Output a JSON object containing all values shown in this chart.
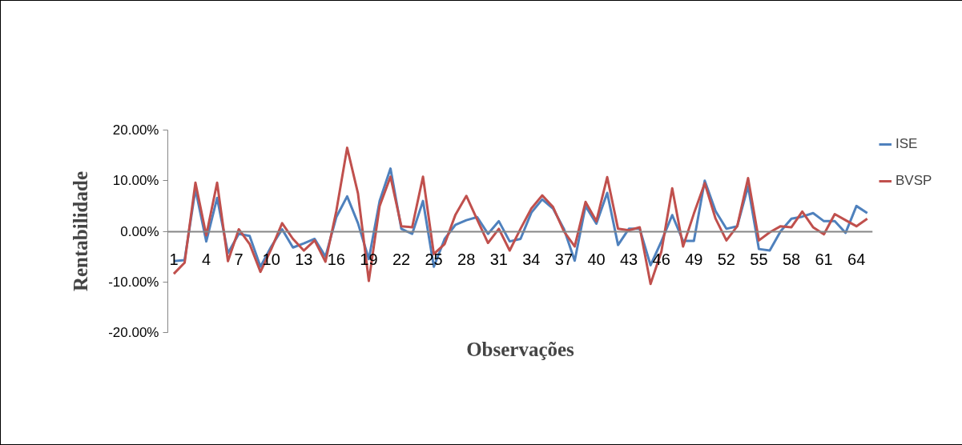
{
  "chart_data": {
    "type": "line",
    "xlabel": "Observações",
    "ylabel": "Rentabilidade",
    "categories": [
      "1",
      null,
      null,
      "4",
      null,
      null,
      "7",
      null,
      null,
      "10",
      null,
      null,
      "13",
      null,
      null,
      "16",
      null,
      null,
      "19",
      null,
      null,
      "22",
      null,
      null,
      "25",
      null,
      null,
      "28",
      null,
      null,
      "31",
      null,
      null,
      "34",
      null,
      null,
      "37",
      null,
      null,
      "40",
      null,
      null,
      "43",
      null,
      null,
      "46",
      null,
      null,
      "49",
      null,
      null,
      "52",
      null,
      null,
      "55",
      null,
      null,
      "58",
      null,
      null,
      "61",
      null,
      null,
      "64",
      null
    ],
    "series": [
      {
        "name": "ISE",
        "color": "#4f81bd",
        "values": [
          -5.9,
          -5.7,
          8.3,
          -2.0,
          6.6,
          -4.3,
          -0.5,
          -0.9,
          -7.0,
          -3.0,
          0.4,
          -3.2,
          -2.4,
          -1.5,
          -5.0,
          2.8,
          6.9,
          1.6,
          -5.5,
          6.0,
          12.4,
          0.5,
          -0.5,
          6.0,
          -7.0,
          -1.5,
          1.3,
          2.2,
          2.8,
          -0.5,
          2.0,
          -2.0,
          -1.5,
          3.7,
          6.3,
          4.5,
          0.5,
          -5.8,
          5.0,
          1.5,
          7.6,
          -2.7,
          0.5,
          0.5,
          -6.7,
          -2.0,
          3.2,
          -1.9,
          -1.9,
          10.0,
          4.0,
          0.5,
          1.0,
          8.9,
          -3.5,
          -3.8,
          0.0,
          2.5,
          2.9,
          3.6,
          2.0,
          2.0,
          -0.3,
          5.0,
          3.6
        ]
      },
      {
        "name": "BVSP",
        "color": "#c0504d",
        "values": [
          -8.4,
          -6.2,
          9.6,
          -0.8,
          9.6,
          -5.9,
          0.4,
          -2.5,
          -8.0,
          -3.5,
          1.6,
          -1.5,
          -3.8,
          -1.8,
          -6.0,
          4.0,
          16.5,
          7.5,
          -9.8,
          5.0,
          10.8,
          1.0,
          0.8,
          10.8,
          -4.5,
          -2.5,
          3.3,
          7.0,
          2.3,
          -2.3,
          0.5,
          -3.8,
          0.5,
          4.5,
          7.1,
          4.8,
          0.0,
          -3.0,
          5.8,
          2.0,
          10.7,
          0.5,
          0.2,
          0.8,
          -10.4,
          -4.0,
          8.5,
          -3.0,
          3.5,
          9.5,
          2.5,
          -1.8,
          1.0,
          10.5,
          -1.8,
          -0.2,
          1.0,
          0.8,
          3.9,
          0.8,
          -0.6,
          3.4,
          2.2,
          1.0,
          2.5
        ]
      }
    ],
    "ylim": [
      -20,
      20
    ],
    "yticks": [
      {
        "value": -20,
        "label": "-20.00%"
      },
      {
        "value": -10,
        "label": "-10.00%"
      },
      {
        "value": 0,
        "label": "0.00%"
      },
      {
        "value": 10,
        "label": "10.00%"
      },
      {
        "value": 20,
        "label": "20.00%"
      }
    ],
    "grid": false,
    "legend": "top right",
    "marker": "none",
    "line_style": "solid"
  }
}
